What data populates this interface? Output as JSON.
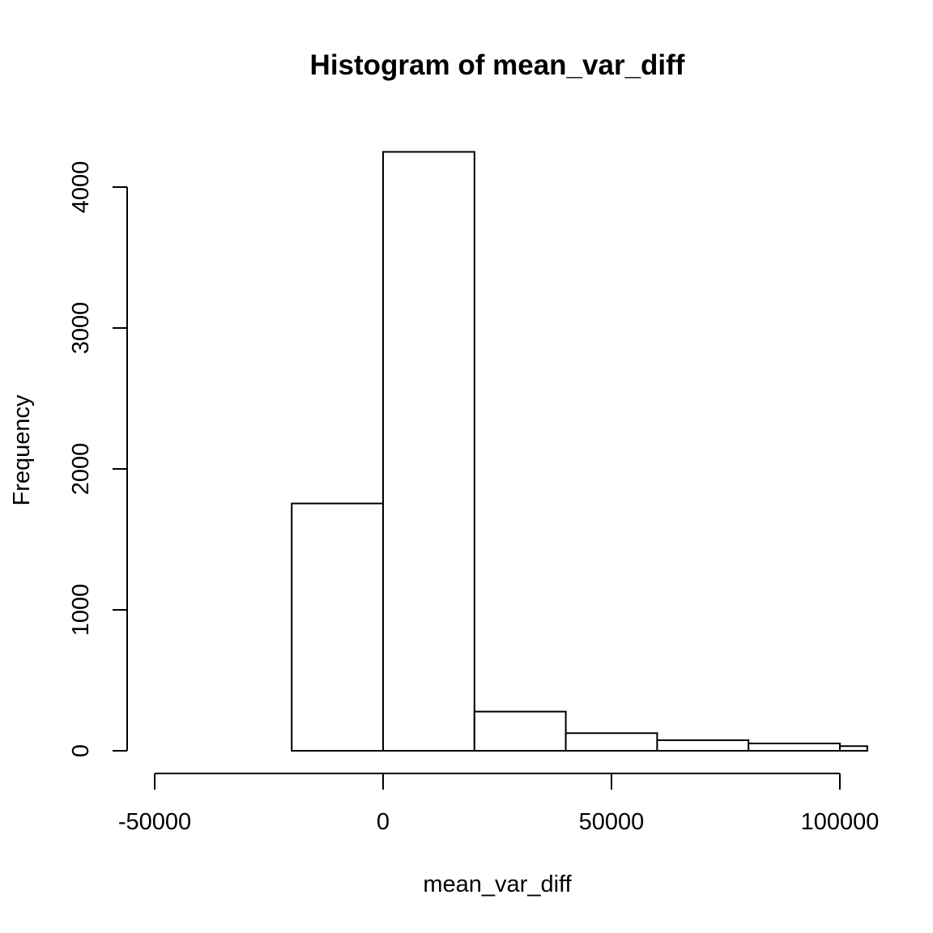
{
  "chart_data": {
    "type": "bar",
    "title": "Histogram of mean_var_diff",
    "xlabel": "mean_var_diff",
    "ylabel": "Frequency",
    "bins": [
      {
        "start": -20000,
        "end": 0,
        "count": 1755
      },
      {
        "start": 0,
        "end": 20000,
        "count": 4250
      },
      {
        "start": 20000,
        "end": 40000,
        "count": 278
      },
      {
        "start": 40000,
        "end": 60000,
        "count": 125
      },
      {
        "start": 60000,
        "end": 80000,
        "count": 75
      },
      {
        "start": 80000,
        "end": 100000,
        "count": 52
      },
      {
        "start": 100000,
        "end": 106000,
        "count": 33
      }
    ],
    "xlim": [
      -50000,
      100000
    ],
    "ylim": [
      0,
      4000
    ],
    "x_ticks": [
      -50000,
      0,
      50000,
      100000
    ],
    "x_tick_labels": [
      "-50000",
      "0",
      "50000",
      "100000"
    ],
    "y_ticks": [
      0,
      1000,
      2000,
      3000,
      4000
    ],
    "y_tick_labels": [
      "0",
      "1000",
      "2000",
      "3000",
      "4000"
    ],
    "grid": false,
    "colors": {
      "bar_fill": "#ffffff",
      "bar_stroke": "#000000"
    }
  }
}
